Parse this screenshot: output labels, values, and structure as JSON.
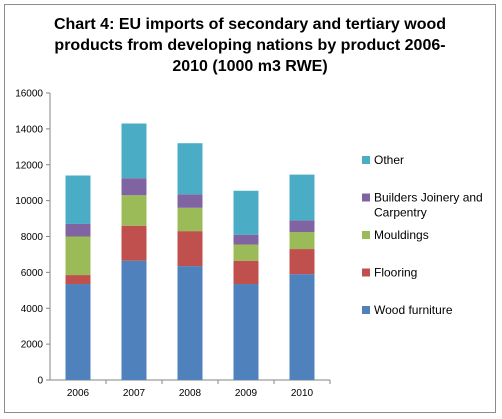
{
  "chart_data": {
    "type": "bar",
    "stacked": true,
    "title": "Chart 4: EU imports of secondary and tertiary wood products from developing nations by product 2006-2010 (1000 m3 RWE)",
    "title_lines": [
      "Chart 4: EU imports of secondary and tertiary wood",
      "products from developing nations by product 2006-",
      "2010 (1000 m3 RWE)"
    ],
    "categories": [
      "2006",
      "2007",
      "2008",
      "2009",
      "2010"
    ],
    "ylim": [
      0,
      16000
    ],
    "yticks": [
      "0",
      "2000",
      "4000",
      "6000",
      "8000",
      "10000",
      "12000",
      "14000",
      "16000"
    ],
    "grid": false,
    "legend_position": "right",
    "series": [
      {
        "name": "Wood furniture",
        "color": "#4f81bd",
        "values": [
          5350,
          6650,
          6350,
          5350,
          5900
        ]
      },
      {
        "name": "Flooring",
        "color": "#c0504d",
        "values": [
          500,
          1950,
          1950,
          1300,
          1400
        ]
      },
      {
        "name": "Mouldings",
        "color": "#9bbb59",
        "values": [
          2150,
          1700,
          1300,
          900,
          950
        ]
      },
      {
        "name": "Builders Joinery and Carpentry",
        "name_lines": [
          "Builders Joinery and",
          "Carpentry"
        ],
        "color": "#8064a2",
        "values": [
          700,
          950,
          750,
          550,
          650
        ]
      },
      {
        "name": "Other",
        "color": "#4bacc6",
        "values": [
          2700,
          3050,
          2850,
          2450,
          2550
        ]
      }
    ]
  }
}
